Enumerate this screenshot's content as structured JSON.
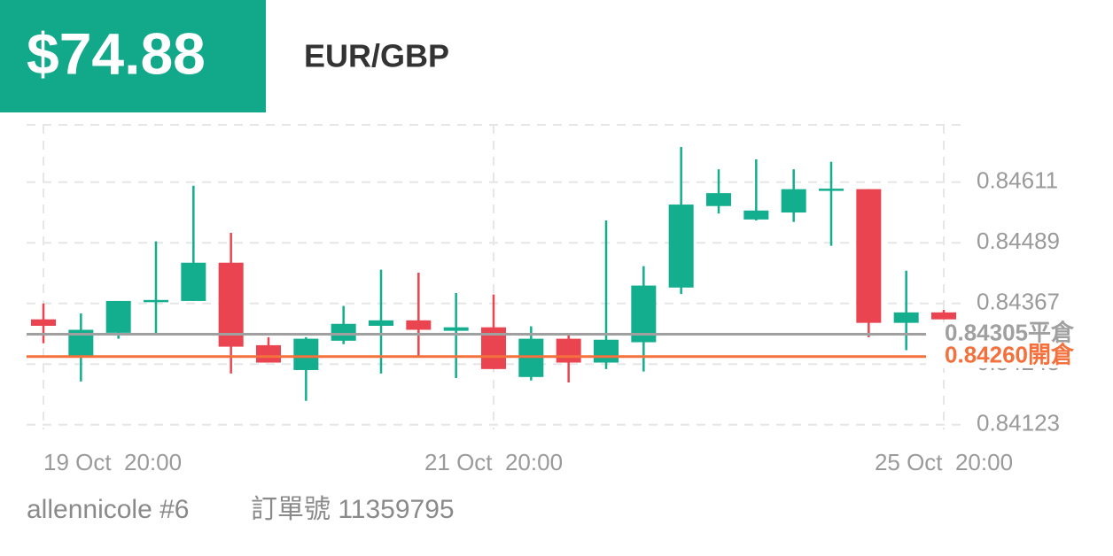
{
  "header": {
    "amount": "$74.88",
    "pair": "EUR/GBP"
  },
  "chart_data": {
    "type": "candlestick",
    "categories": [
      "19 Oct  20:00",
      null,
      null,
      null,
      null,
      null,
      null,
      null,
      null,
      null,
      null,
      null,
      "21 Oct  20:00",
      null,
      null,
      null,
      null,
      null,
      null,
      null,
      null,
      null,
      null,
      null,
      "25 Oct  20:00"
    ],
    "open": [
      0.84335,
      0.8426,
      0.84308,
      0.8437,
      0.84372,
      0.84449,
      0.84283,
      0.84233,
      0.84292,
      0.84322,
      0.84333,
      0.84312,
      0.84319,
      0.84219,
      0.84296,
      0.84248,
      0.84289,
      0.84399,
      0.84563,
      0.84536,
      0.8455,
      0.84595,
      0.84597,
      0.84328,
      0.84349
    ],
    "high": [
      0.84367,
      0.84347,
      0.84372,
      0.84492,
      0.84604,
      0.84509,
      0.84299,
      0.84299,
      0.84362,
      0.84435,
      0.84429,
      0.84388,
      0.84385,
      0.84321,
      0.84306,
      0.84534,
      0.84442,
      0.84682,
      0.84637,
      0.84657,
      0.84637,
      0.84652,
      0.84597,
      0.84433,
      0.84354
    ],
    "low": [
      0.84287,
      0.8421,
      0.84296,
      0.84305,
      0.84372,
      0.84226,
      0.84248,
      0.84171,
      0.84285,
      0.84226,
      0.8426,
      0.84217,
      0.84235,
      0.84212,
      0.84208,
      0.84235,
      0.8423,
      0.84386,
      0.84548,
      0.84534,
      0.84531,
      0.84483,
      0.84299,
      0.84273,
      0.84335
    ],
    "close": [
      0.84322,
      0.84314,
      0.84372,
      0.84374,
      0.84449,
      0.8428,
      0.84248,
      0.84296,
      0.84326,
      0.84333,
      0.84314,
      0.84319,
      0.84235,
      0.84296,
      0.84248,
      0.84294,
      0.84403,
      0.84566,
      0.84589,
      0.84554,
      0.84597,
      0.84598,
      0.84328,
      0.84349,
      0.84335
    ],
    "up_color": "#12ae8d",
    "down_color": "#e9444f",
    "ylim": [
      0.8411,
      0.8473
    ],
    "yticks": [
      0.84123,
      0.84245,
      0.84367,
      0.84489,
      0.84611
    ],
    "grid": true,
    "lines": [
      {
        "value": 0.84305,
        "label": "0.84305平倉",
        "color": "#a0a0a0"
      },
      {
        "value": 0.8426,
        "label": "0.84260開倉",
        "color": "#f4703c"
      }
    ]
  },
  "footer": {
    "user": "allennicole #6",
    "order": "訂單號 11359795"
  }
}
